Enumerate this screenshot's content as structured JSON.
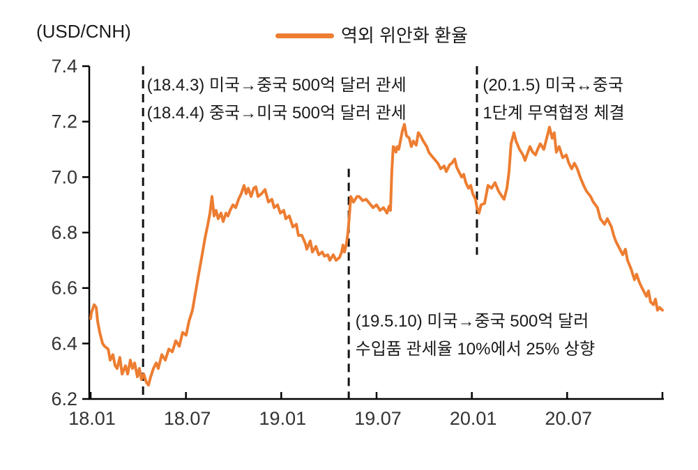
{
  "unit_label": "(USD/CNH)",
  "legend": {
    "label": "역외 위안화 환율",
    "color": "#ED7D31"
  },
  "annotations": [
    {
      "line1": "(18.4.3) 미국→중국 500억 달러 관세",
      "line2": "(18.4.4) 중국→미국 500억 달러 관세",
      "event_month": 3.3,
      "dash_top_value": 7.4,
      "dash_bottom_value": 6.2,
      "label_month": 3.45,
      "label_value": 7.38
    },
    {
      "line1": "(19.5.10) 미국→중국 500억 달러",
      "line2": "수입품 관세율 10%에서 25% 상향",
      "event_month": 16.25,
      "dash_top_value": 7.03,
      "dash_bottom_value": 6.2,
      "label_month": 16.58,
      "label_value": 6.53
    },
    {
      "line1": "(20.1.5) 미국↔중국",
      "line2": "1단계 무역협정 체결",
      "event_month": 24.32,
      "dash_top_value": 7.4,
      "dash_bottom_value": 6.72,
      "label_month": 24.6,
      "label_value": 7.38
    }
  ],
  "chart_data": {
    "type": "line",
    "title": "역외 위안화 환율",
    "unit": "(USD/CNH)",
    "xlabel": "",
    "ylabel": "USD/CNH",
    "ylim": [
      6.2,
      7.4
    ],
    "y_ticks": [
      7.4,
      7.2,
      7.0,
      6.8,
      6.6,
      6.4,
      6.2
    ],
    "x_axis": {
      "range_months": [
        0,
        36
      ],
      "tick_months": [
        0,
        6,
        12,
        18,
        24,
        30,
        36
      ],
      "tick_labels": [
        "18.01",
        "18.07",
        "19.01",
        "19.07",
        "20.01",
        "20.07"
      ]
    },
    "grid": false,
    "legend_position": "top-center",
    "series": [
      {
        "name": "역외 위안화 환율",
        "color": "#ED7D31",
        "x_unit": "months_since_2018_01",
        "points": [
          [
            0,
            6.49
          ],
          [
            0.04,
            6.51
          ],
          [
            0.22,
            6.54
          ],
          [
            0.35,
            6.53
          ],
          [
            0.44,
            6.48
          ],
          [
            0.57,
            6.44
          ],
          [
            0.75,
            6.4
          ],
          [
            0.88,
            6.39
          ],
          [
            1.1,
            6.38
          ],
          [
            1.23,
            6.34
          ],
          [
            1.4,
            6.36
          ],
          [
            1.54,
            6.32
          ],
          [
            1.67,
            6.31
          ],
          [
            1.84,
            6.35
          ],
          [
            1.98,
            6.29
          ],
          [
            2.19,
            6.32
          ],
          [
            2.33,
            6.29
          ],
          [
            2.5,
            6.34
          ],
          [
            2.63,
            6.31
          ],
          [
            2.77,
            6.33
          ],
          [
            2.94,
            6.28
          ],
          [
            3.07,
            6.31
          ],
          [
            3.2,
            6.27
          ],
          [
            3.34,
            6.29
          ],
          [
            3.51,
            6.26
          ],
          [
            3.64,
            6.25
          ],
          [
            3.78,
            6.28
          ],
          [
            3.95,
            6.31
          ],
          [
            4.13,
            6.33
          ],
          [
            4.26,
            6.31
          ],
          [
            4.48,
            6.36
          ],
          [
            4.7,
            6.34
          ],
          [
            4.92,
            6.38
          ],
          [
            5.14,
            6.37
          ],
          [
            5.36,
            6.41
          ],
          [
            5.58,
            6.39
          ],
          [
            5.79,
            6.44
          ],
          [
            6.01,
            6.43
          ],
          [
            6.19,
            6.48
          ],
          [
            6.41,
            6.52
          ],
          [
            6.59,
            6.58
          ],
          [
            6.8,
            6.65
          ],
          [
            7.02,
            6.72
          ],
          [
            7.2,
            6.78
          ],
          [
            7.38,
            6.83
          ],
          [
            7.51,
            6.87
          ],
          [
            7.64,
            6.93
          ],
          [
            7.77,
            6.86
          ],
          [
            7.9,
            6.88
          ],
          [
            8.03,
            6.85
          ],
          [
            8.21,
            6.87
          ],
          [
            8.34,
            6.84
          ],
          [
            8.52,
            6.87
          ],
          [
            8.65,
            6.86
          ],
          [
            8.78,
            6.88
          ],
          [
            8.96,
            6.9
          ],
          [
            9.13,
            6.89
          ],
          [
            9.31,
            6.92
          ],
          [
            9.48,
            6.94
          ],
          [
            9.66,
            6.97
          ],
          [
            9.79,
            6.94
          ],
          [
            9.92,
            6.96
          ],
          [
            10.1,
            6.93
          ],
          [
            10.27,
            6.96
          ],
          [
            10.4,
            6.965
          ],
          [
            10.54,
            6.93
          ],
          [
            10.76,
            6.94
          ],
          [
            10.98,
            6.955
          ],
          [
            11.19,
            6.91
          ],
          [
            11.41,
            6.92
          ],
          [
            11.55,
            6.89
          ],
          [
            11.77,
            6.9
          ],
          [
            11.94,
            6.87
          ],
          [
            12.16,
            6.88
          ],
          [
            12.29,
            6.85
          ],
          [
            12.51,
            6.86
          ],
          [
            12.73,
            6.82
          ],
          [
            12.95,
            6.83
          ],
          [
            13.08,
            6.79
          ],
          [
            13.3,
            6.79
          ],
          [
            13.52,
            6.76
          ],
          [
            13.61,
            6.74
          ],
          [
            13.83,
            6.77
          ],
          [
            13.96,
            6.73
          ],
          [
            14.18,
            6.75
          ],
          [
            14.36,
            6.72
          ],
          [
            14.58,
            6.73
          ],
          [
            14.71,
            6.715
          ],
          [
            14.93,
            6.72
          ],
          [
            15.06,
            6.7
          ],
          [
            15.28,
            6.72
          ],
          [
            15.45,
            6.7
          ],
          [
            15.67,
            6.71
          ],
          [
            15.8,
            6.73
          ],
          [
            15.89,
            6.755
          ],
          [
            15.98,
            6.73
          ],
          [
            16.11,
            6.76
          ],
          [
            16.2,
            6.8
          ],
          [
            16.29,
            6.86
          ],
          [
            16.38,
            6.93
          ],
          [
            16.55,
            6.91
          ],
          [
            16.77,
            6.93
          ],
          [
            16.9,
            6.93
          ],
          [
            17.12,
            6.915
          ],
          [
            17.34,
            6.92
          ],
          [
            17.56,
            6.905
          ],
          [
            17.78,
            6.89
          ],
          [
            18.0,
            6.9
          ],
          [
            18.22,
            6.88
          ],
          [
            18.44,
            6.89
          ],
          [
            18.66,
            6.87
          ],
          [
            18.79,
            6.895
          ],
          [
            18.88,
            6.88
          ],
          [
            18.96,
            7.02
          ],
          [
            19.05,
            7.11
          ],
          [
            19.14,
            7.105
          ],
          [
            19.22,
            7.09
          ],
          [
            19.31,
            7.11
          ],
          [
            19.4,
            7.1
          ],
          [
            19.62,
            7.165
          ],
          [
            19.75,
            7.19
          ],
          [
            19.88,
            7.15
          ],
          [
            20.06,
            7.14
          ],
          [
            20.19,
            7.11
          ],
          [
            20.32,
            7.13
          ],
          [
            20.5,
            7.115
          ],
          [
            20.63,
            7.16
          ],
          [
            20.76,
            7.15
          ],
          [
            20.94,
            7.13
          ],
          [
            21.16,
            7.11
          ],
          [
            21.29,
            7.09
          ],
          [
            21.42,
            7.08
          ],
          [
            21.64,
            7.065
          ],
          [
            21.86,
            7.05
          ],
          [
            22.04,
            7.03
          ],
          [
            22.26,
            7.04
          ],
          [
            22.39,
            7.02
          ],
          [
            22.61,
            7.045
          ],
          [
            22.74,
            7.05
          ],
          [
            22.92,
            7.065
          ],
          [
            23.05,
            7.035
          ],
          [
            23.18,
            7.02
          ],
          [
            23.36,
            7.0
          ],
          [
            23.49,
            7.01
          ],
          [
            23.62,
            6.98
          ],
          [
            23.79,
            6.96
          ],
          [
            23.93,
            6.97
          ],
          [
            24.06,
            6.94
          ],
          [
            24.23,
            6.92
          ],
          [
            24.32,
            6.89
          ],
          [
            24.45,
            6.87
          ],
          [
            24.58,
            6.9
          ],
          [
            24.8,
            6.905
          ],
          [
            25.02,
            6.97
          ],
          [
            25.24,
            6.96
          ],
          [
            25.46,
            6.98
          ],
          [
            25.68,
            6.95
          ],
          [
            25.9,
            6.93
          ],
          [
            26.03,
            6.92
          ],
          [
            26.21,
            6.96
          ],
          [
            26.34,
            7.02
          ],
          [
            26.47,
            7.12
          ],
          [
            26.65,
            7.16
          ],
          [
            26.78,
            7.13
          ],
          [
            27.0,
            7.1
          ],
          [
            27.22,
            7.08
          ],
          [
            27.35,
            7.06
          ],
          [
            27.53,
            7.09
          ],
          [
            27.66,
            7.11
          ],
          [
            27.83,
            7.09
          ],
          [
            28.01,
            7.08
          ],
          [
            28.14,
            7.1
          ],
          [
            28.31,
            7.12
          ],
          [
            28.53,
            7.1
          ],
          [
            28.71,
            7.14
          ],
          [
            28.89,
            7.18
          ],
          [
            29.06,
            7.14
          ],
          [
            29.19,
            7.16
          ],
          [
            29.32,
            7.09
          ],
          [
            29.5,
            7.11
          ],
          [
            29.72,
            7.07
          ],
          [
            29.94,
            7.08
          ],
          [
            30.11,
            7.05
          ],
          [
            30.29,
            7.03
          ],
          [
            30.46,
            7.05
          ],
          [
            30.64,
            7.03
          ],
          [
            30.82,
            7.0
          ],
          [
            31.04,
            6.97
          ],
          [
            31.21,
            6.95
          ],
          [
            31.48,
            6.93
          ],
          [
            31.65,
            6.91
          ],
          [
            31.91,
            6.89
          ],
          [
            32.09,
            6.85
          ],
          [
            32.35,
            6.83
          ],
          [
            32.53,
            6.85
          ],
          [
            32.79,
            6.82
          ],
          [
            32.93,
            6.79
          ],
          [
            33.06,
            6.77
          ],
          [
            33.23,
            6.75
          ],
          [
            33.5,
            6.72
          ],
          [
            33.67,
            6.74
          ],
          [
            33.8,
            6.7
          ],
          [
            34.02,
            6.67
          ],
          [
            34.24,
            6.63
          ],
          [
            34.37,
            6.65
          ],
          [
            34.55,
            6.62
          ],
          [
            34.72,
            6.6
          ],
          [
            34.99,
            6.57
          ],
          [
            35.12,
            6.59
          ],
          [
            35.25,
            6.55
          ],
          [
            35.43,
            6.54
          ],
          [
            35.56,
            6.56
          ],
          [
            35.69,
            6.52
          ],
          [
            35.82,
            6.53
          ],
          [
            36.0,
            6.52
          ]
        ]
      }
    ]
  },
  "style": {
    "axis_color": "#000000",
    "tick_label_color": "#333333",
    "event_line_color": "#111111",
    "line_width": 4
  }
}
